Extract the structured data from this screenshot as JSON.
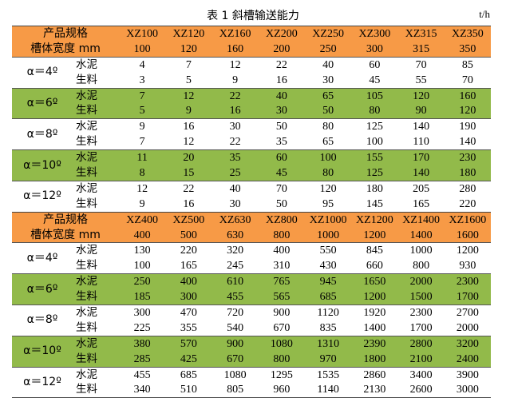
{
  "title": "表 1  斜槽输送能力",
  "unit": "t/h",
  "labels": {
    "spec": "产品规格",
    "width": "槽体宽度 mm",
    "cement": "水泥",
    "raw": "生料"
  },
  "colors": {
    "header": "#f79a46",
    "green": "#92ba4a",
    "white": "#ffffff"
  },
  "sections": [
    {
      "models": [
        "XZ100",
        "XZ120",
        "XZ160",
        "XZ200",
        "XZ250",
        "XZ300",
        "XZ315",
        "XZ350"
      ],
      "widths": [
        "100",
        "120",
        "160",
        "200",
        "250",
        "300",
        "315",
        "350"
      ],
      "groups": [
        {
          "angle": "α＝4º",
          "shade": "w",
          "cement": [
            "4",
            "7",
            "12",
            "22",
            "40",
            "60",
            "70",
            "85"
          ],
          "raw": [
            "3",
            "5",
            "9",
            "16",
            "30",
            "45",
            "55",
            "70"
          ]
        },
        {
          "angle": "α＝6º",
          "shade": "g",
          "cement": [
            "7",
            "12",
            "22",
            "40",
            "65",
            "105",
            "120",
            "160"
          ],
          "raw": [
            "5",
            "9",
            "16",
            "30",
            "50",
            "80",
            "90",
            "120"
          ]
        },
        {
          "angle": "α＝8º",
          "shade": "w",
          "cement": [
            "9",
            "16",
            "30",
            "50",
            "80",
            "125",
            "140",
            "190"
          ],
          "raw": [
            "7",
            "12",
            "22",
            "35",
            "65",
            "100",
            "110",
            "140"
          ]
        },
        {
          "angle": "α＝10º",
          "shade": "g",
          "cement": [
            "11",
            "20",
            "35",
            "60",
            "100",
            "155",
            "170",
            "230"
          ],
          "raw": [
            "8",
            "15",
            "25",
            "45",
            "80",
            "125",
            "140",
            "180"
          ]
        },
        {
          "angle": "α＝12º",
          "shade": "w",
          "cement": [
            "12",
            "22",
            "40",
            "70",
            "120",
            "180",
            "205",
            "280"
          ],
          "raw": [
            "9",
            "16",
            "30",
            "50",
            "95",
            "145",
            "165",
            "220"
          ]
        }
      ]
    },
    {
      "models": [
        "XZ400",
        "XZ500",
        "XZ630",
        "XZ800",
        "XZ1000",
        "XZ1200",
        "XZ1400",
        "XZ1600"
      ],
      "widths": [
        "400",
        "500",
        "630",
        "800",
        "1000",
        "1200",
        "1400",
        "1600"
      ],
      "groups": [
        {
          "angle": "α＝4º",
          "shade": "w",
          "cement": [
            "130",
            "220",
            "320",
            "400",
            "550",
            "845",
            "1000",
            "1200"
          ],
          "raw": [
            "100",
            "165",
            "245",
            "310",
            "430",
            "660",
            "800",
            "930"
          ]
        },
        {
          "angle": "α＝6º",
          "shade": "g",
          "cement": [
            "250",
            "400",
            "610",
            "765",
            "945",
            "1650",
            "2000",
            "2300"
          ],
          "raw": [
            "185",
            "300",
            "455",
            "565",
            "685",
            "1200",
            "1500",
            "1700"
          ]
        },
        {
          "angle": "α＝8º",
          "shade": "w",
          "cement": [
            "300",
            "470",
            "720",
            "900",
            "1120",
            "1920",
            "2300",
            "2700"
          ],
          "raw": [
            "225",
            "355",
            "540",
            "670",
            "835",
            "1400",
            "1700",
            "2000"
          ]
        },
        {
          "angle": "α＝10º",
          "shade": "g",
          "cement": [
            "380",
            "570",
            "900",
            "1080",
            "1310",
            "2390",
            "2800",
            "3200"
          ],
          "raw": [
            "285",
            "425",
            "670",
            "800",
            "970",
            "1800",
            "2100",
            "2400"
          ]
        },
        {
          "angle": "α＝12º",
          "shade": "w",
          "cement": [
            "455",
            "685",
            "1080",
            "1295",
            "1535",
            "2860",
            "3400",
            "3900"
          ],
          "raw": [
            "340",
            "510",
            "805",
            "960",
            "1140",
            "2130",
            "2600",
            "3000"
          ]
        }
      ]
    }
  ]
}
